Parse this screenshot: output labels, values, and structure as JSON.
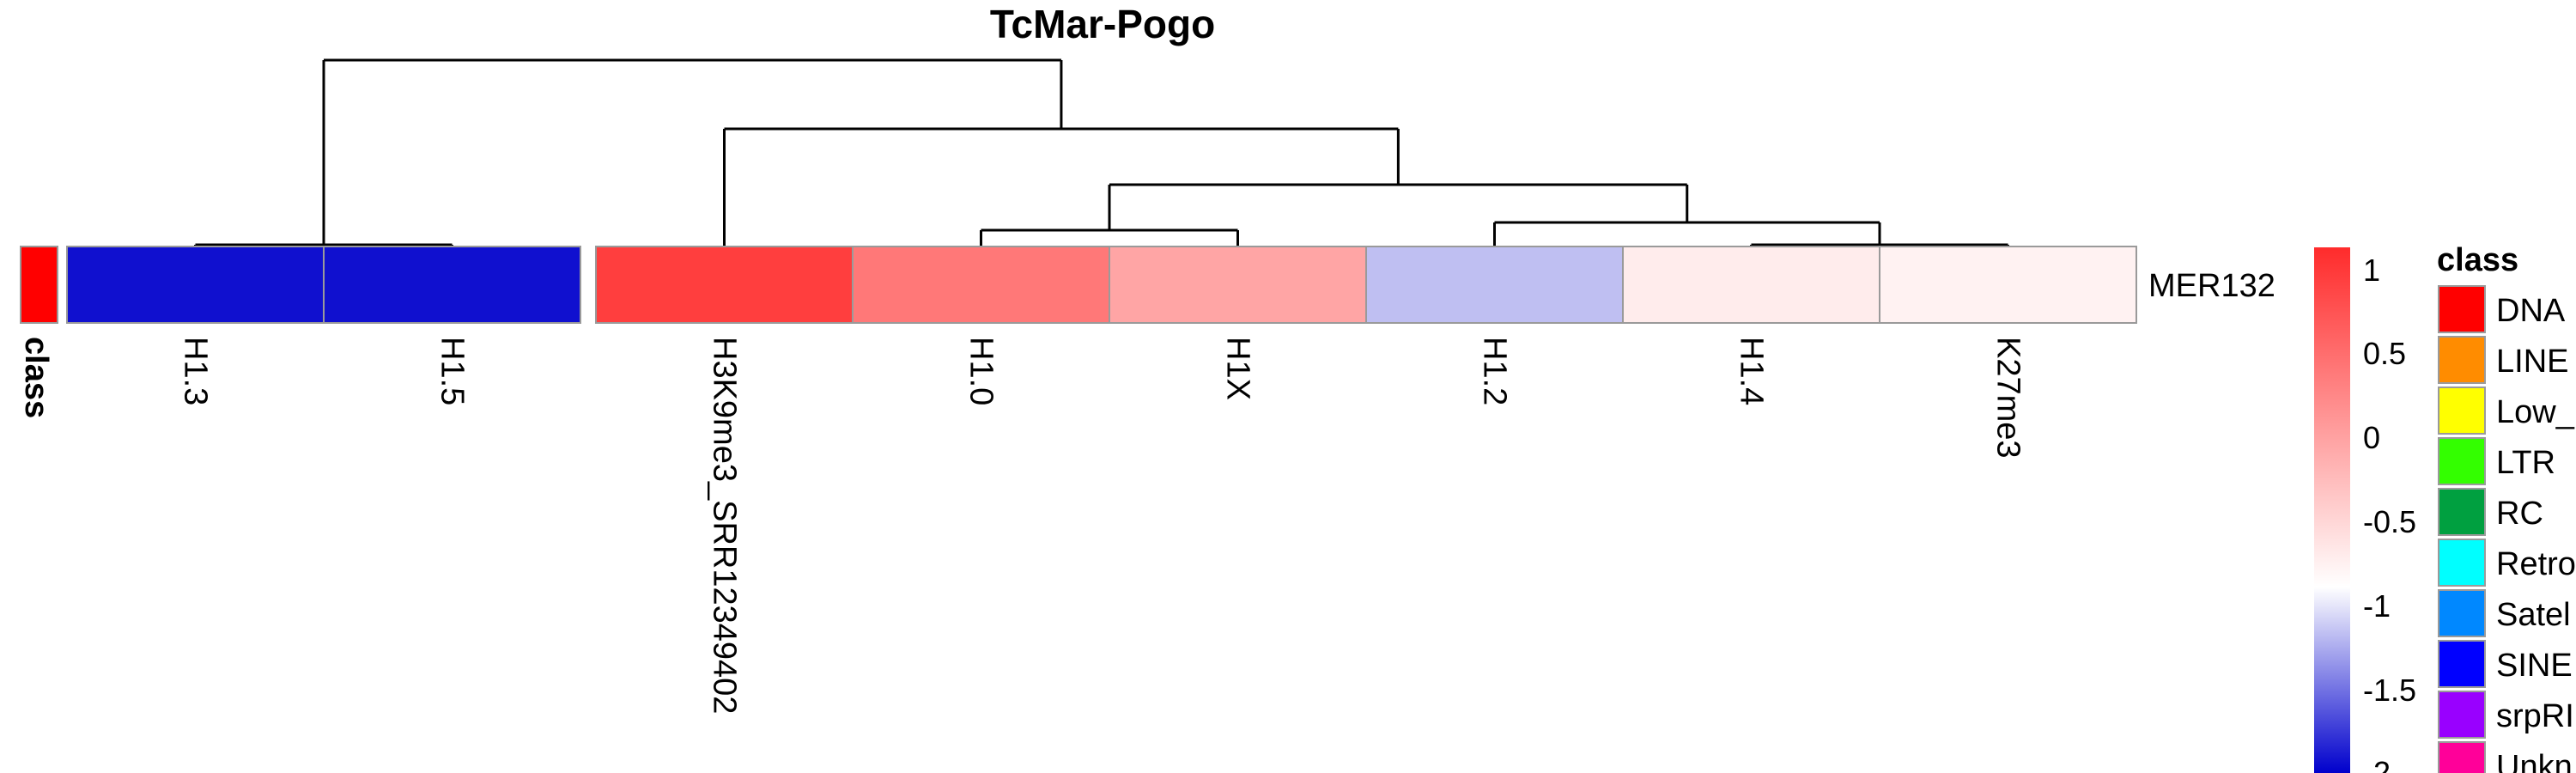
{
  "chart_data": {
    "type": "heatmap",
    "title": "TcMar-Pogo",
    "rows": [
      "MER132"
    ],
    "columns": [
      "H1.3",
      "H1.5",
      "H3K9me3_SRR12349402",
      "H1.0",
      "H1X",
      "H1.2",
      "H1.4",
      "K27me3"
    ],
    "column_groups": [
      [
        "H1.3",
        "H1.5"
      ],
      [
        "H3K9me3_SRR12349402",
        "H1.0",
        "H1X",
        "H1.2",
        "H1.4",
        "K27me3"
      ]
    ],
    "values": [
      [
        -2.0,
        -2.0,
        1.0,
        0.55,
        0.2,
        -0.9,
        -0.35,
        -0.4
      ]
    ],
    "row_annotation": {
      "name": "class",
      "values": [
        "DNA"
      ],
      "colors": {
        "DNA": "#ff0000"
      }
    },
    "color_scale": {
      "ticks": [
        "1",
        "0.5",
        "0",
        "-0.5",
        "-1",
        "-1.5",
        "-2"
      ],
      "high_color": "#ff2b2b",
      "mid_color": "#ffffff",
      "low_color": "#0000cc",
      "range": [
        -2.1,
        1.15
      ]
    },
    "class_legend": {
      "title": "class",
      "items": [
        {
          "label": "DNA",
          "color": "#ff0000"
        },
        {
          "label": "LINE",
          "color": "#ff8c00"
        },
        {
          "label": "Low_",
          "color": "#ffff00"
        },
        {
          "label": "LTR",
          "color": "#33ff00"
        },
        {
          "label": "RC",
          "color": "#00a040"
        },
        {
          "label": "Retro",
          "color": "#00ffff"
        },
        {
          "label": "Satel",
          "color": "#0088ff"
        },
        {
          "label": "SINE",
          "color": "#0000ff"
        },
        {
          "label": "srpRI",
          "color": "#9900ff"
        },
        {
          "label": "Unkn",
          "color": "#ff0099"
        }
      ]
    }
  }
}
